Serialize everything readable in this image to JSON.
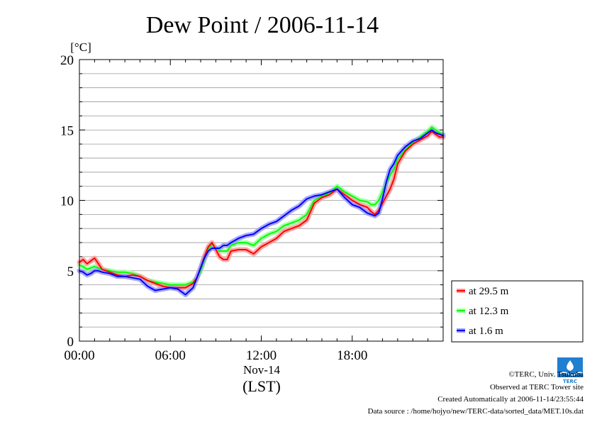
{
  "chart_data": {
    "type": "line",
    "title": "Dew Point / 2006-11-14",
    "ylabel": "[°C]",
    "ylim": [
      0,
      20
    ],
    "yticks": [
      0,
      5,
      10,
      15,
      20
    ],
    "xlim": [
      0,
      24
    ],
    "xticks": [
      {
        "value": 0,
        "label": "00:00"
      },
      {
        "value": 6,
        "label": "06:00"
      },
      {
        "value": 12,
        "label": "12:00"
      },
      {
        "value": 18,
        "label": "18:00"
      }
    ],
    "xdate_label": "Nov-14",
    "xunit_label": "(LST)",
    "grid": true,
    "legend_position": "right-bottom",
    "series": [
      {
        "name": "at 29.5 m",
        "color": "#ff0000",
        "x": [
          0,
          0.25,
          0.5,
          0.75,
          1,
          1.25,
          1.5,
          2,
          2.5,
          3,
          3.5,
          4,
          4.5,
          5,
          5.5,
          6,
          6.5,
          7,
          7.5,
          7.75,
          8,
          8.25,
          8.5,
          8.75,
          9,
          9.25,
          9.5,
          9.75,
          10,
          10.5,
          11,
          11.5,
          12,
          12.5,
          13,
          13.5,
          14,
          14.5,
          15,
          15.5,
          16,
          16.5,
          17,
          17.5,
          18,
          18.5,
          19,
          19.25,
          19.5,
          19.75,
          20,
          20.25,
          20.5,
          20.75,
          21,
          21.5,
          22,
          22.5,
          23,
          23.25,
          23.5,
          23.75,
          24
        ],
        "values": [
          5.6,
          5.8,
          5.5,
          5.7,
          5.9,
          5.5,
          5.1,
          4.9,
          4.7,
          4.6,
          4.7,
          4.6,
          4.3,
          4.1,
          3.9,
          3.8,
          3.8,
          3.8,
          4.1,
          4.5,
          5.2,
          6.0,
          6.7,
          7.0,
          6.5,
          6.0,
          5.8,
          5.8,
          6.4,
          6.5,
          6.5,
          6.2,
          6.7,
          7.0,
          7.3,
          7.8,
          8.0,
          8.2,
          8.6,
          9.8,
          10.2,
          10.4,
          10.8,
          10.4,
          10.0,
          9.7,
          9.5,
          9.2,
          9.0,
          9.3,
          9.8,
          10.3,
          10.8,
          11.5,
          12.6,
          13.5,
          14.0,
          14.3,
          14.6,
          14.9,
          14.7,
          14.5,
          14.5
        ]
      },
      {
        "name": "at 12.3 m",
        "color": "#00ff00",
        "x": [
          0,
          0.25,
          0.5,
          0.75,
          1,
          1.25,
          1.5,
          2,
          2.5,
          3,
          3.5,
          4,
          4.5,
          5,
          5.5,
          6,
          6.5,
          7,
          7.5,
          7.75,
          8,
          8.25,
          8.5,
          8.75,
          9,
          9.25,
          9.5,
          9.75,
          10,
          10.5,
          11,
          11.5,
          12,
          12.5,
          13,
          13.5,
          14,
          14.5,
          15,
          15.5,
          16,
          16.5,
          17,
          17.5,
          18,
          18.5,
          19,
          19.25,
          19.5,
          19.75,
          20,
          20.25,
          20.5,
          20.75,
          21,
          21.5,
          22,
          22.5,
          23,
          23.25,
          23.5,
          23.75,
          24
        ],
        "values": [
          5.4,
          5.3,
          5.1,
          5.2,
          5.3,
          5.2,
          5.1,
          5.0,
          4.9,
          4.9,
          4.8,
          4.6,
          4.3,
          4.2,
          4.1,
          4.0,
          4.0,
          4.0,
          4.2,
          4.5,
          5.0,
          5.8,
          6.5,
          6.9,
          6.6,
          6.4,
          6.4,
          6.4,
          6.8,
          7.0,
          7.0,
          6.8,
          7.3,
          7.6,
          7.8,
          8.2,
          8.4,
          8.6,
          9.0,
          10.0,
          10.3,
          10.5,
          11.0,
          10.6,
          10.3,
          10.0,
          9.9,
          9.7,
          9.7,
          10.0,
          10.6,
          11.2,
          11.8,
          12.2,
          12.9,
          13.6,
          14.1,
          14.5,
          14.9,
          15.2,
          15.0,
          14.8,
          14.7
        ]
      },
      {
        "name": "at 1.6 m",
        "color": "#0000ff",
        "x": [
          0,
          0.25,
          0.5,
          0.75,
          1,
          1.25,
          1.5,
          2,
          2.5,
          3,
          3.5,
          4,
          4.5,
          5,
          5.5,
          6,
          6.5,
          7,
          7.5,
          7.75,
          8,
          8.25,
          8.5,
          8.75,
          9,
          9.25,
          9.5,
          9.75,
          10,
          10.5,
          11,
          11.5,
          12,
          12.5,
          13,
          13.5,
          14,
          14.5,
          15,
          15.5,
          16,
          16.5,
          17,
          17.5,
          18,
          18.5,
          19,
          19.25,
          19.5,
          19.75,
          20,
          20.25,
          20.5,
          20.75,
          21,
          21.5,
          22,
          22.5,
          23,
          23.25,
          23.5,
          23.75,
          24
        ],
        "values": [
          5.0,
          4.9,
          4.7,
          4.8,
          5.0,
          5.0,
          4.9,
          4.8,
          4.6,
          4.6,
          4.5,
          4.4,
          3.9,
          3.6,
          3.7,
          3.8,
          3.7,
          3.3,
          3.8,
          4.5,
          5.2,
          5.9,
          6.4,
          6.6,
          6.6,
          6.6,
          6.8,
          6.8,
          7.0,
          7.3,
          7.5,
          7.6,
          8.0,
          8.3,
          8.5,
          8.9,
          9.3,
          9.6,
          10.1,
          10.3,
          10.4,
          10.6,
          10.8,
          10.2,
          9.7,
          9.5,
          9.1,
          9.0,
          8.9,
          9.1,
          10.1,
          11.3,
          12.2,
          12.6,
          13.2,
          13.8,
          14.2,
          14.4,
          14.8,
          15.0,
          14.8,
          14.7,
          14.6
        ]
      }
    ]
  },
  "footer": {
    "copyright": "©TERC, Univ. Tsukuba",
    "observed": "Observed at TERC Tower site",
    "created": "Created Automatically at 2006-11-14/23:55:44",
    "source": "Data source : /home/hojyo/new/TERC-data/sorted_data/MET.10s.dat",
    "logo_text": "TERC"
  }
}
